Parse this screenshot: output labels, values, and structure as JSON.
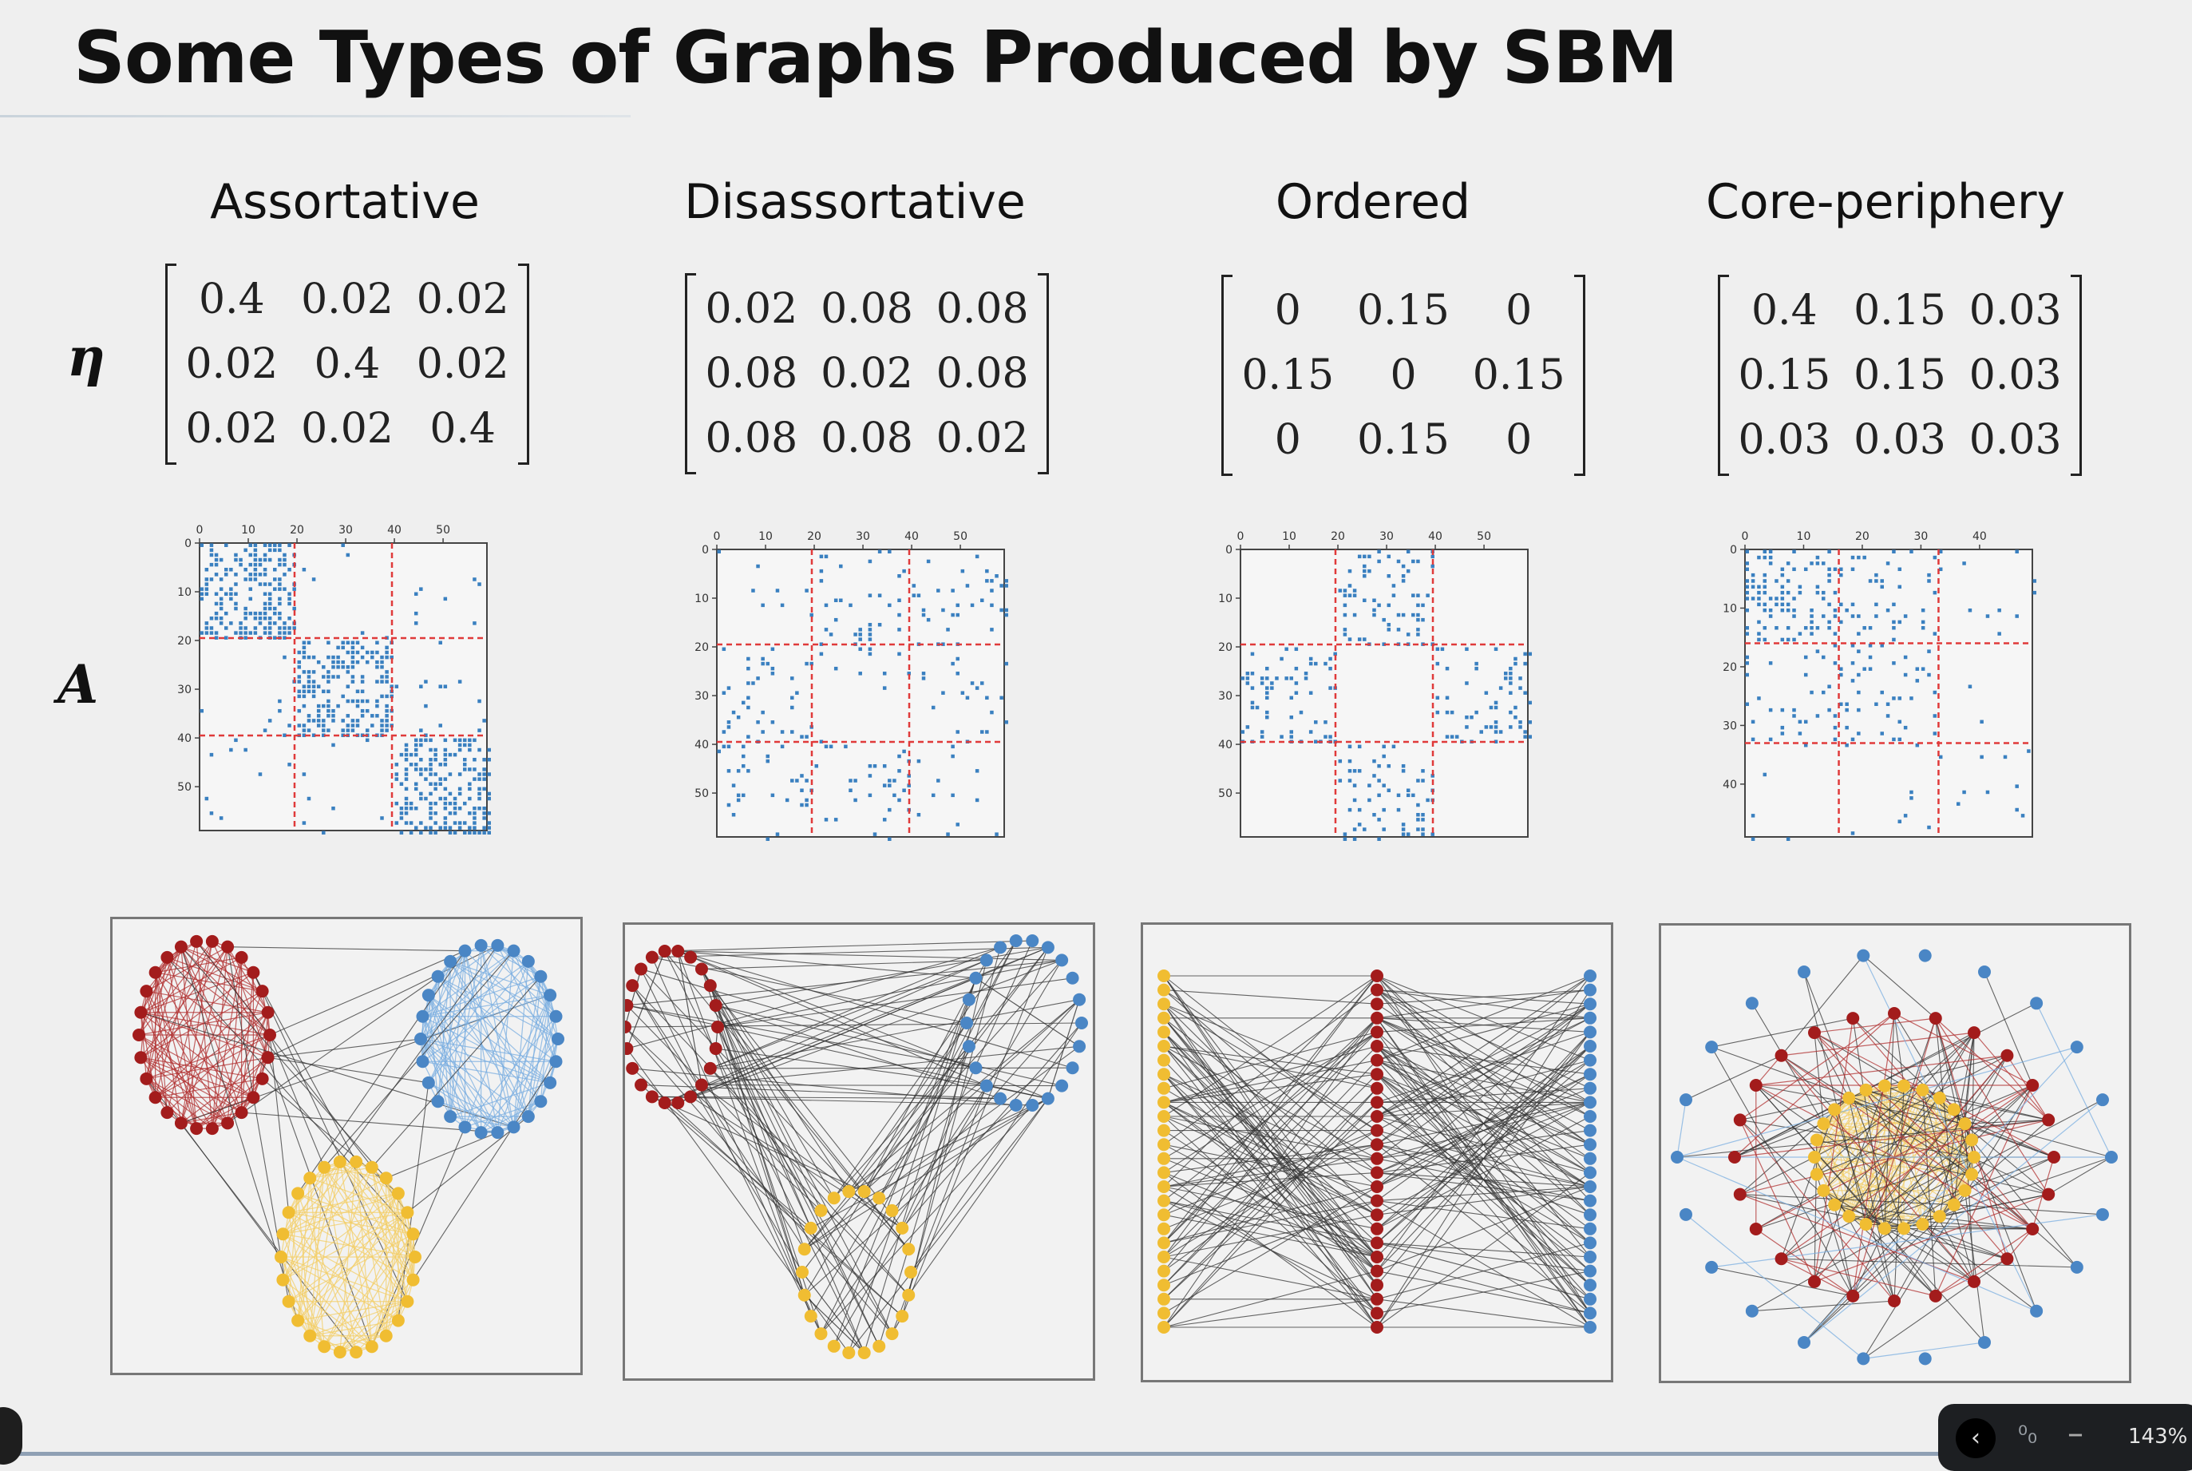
{
  "title": "Some Types of Graphs Produced by SBM",
  "row_labels": {
    "eta": "η",
    "adjacency": "A"
  },
  "panels": [
    {
      "name": "Assortative",
      "eta": [
        [
          "0.4",
          "0.02",
          "0.02"
        ],
        [
          "0.02",
          "0.4",
          "0.02"
        ],
        [
          "0.02",
          "0.02",
          "0.4"
        ]
      ],
      "spy_ticks_x": [
        "0",
        "10",
        "20",
        "30",
        "40",
        "50"
      ],
      "spy_ticks_y": [
        "0",
        "10",
        "20",
        "30",
        "40",
        "50"
      ]
    },
    {
      "name": "Disassortative",
      "eta": [
        [
          "0.02",
          "0.08",
          "0.08"
        ],
        [
          "0.08",
          "0.02",
          "0.08"
        ],
        [
          "0.08",
          "0.08",
          "0.02"
        ]
      ],
      "spy_ticks_x": [
        "0",
        "10",
        "20",
        "30",
        "40",
        "50"
      ],
      "spy_ticks_y": [
        "0",
        "10",
        "20",
        "30",
        "40",
        "50"
      ]
    },
    {
      "name": "Ordered",
      "eta": [
        [
          "0",
          "0.15",
          "0"
        ],
        [
          "0.15",
          "0",
          "0.15"
        ],
        [
          "0",
          "0.15",
          "0"
        ]
      ],
      "spy_ticks_x": [
        "0",
        "10",
        "20",
        "30",
        "40",
        "50"
      ],
      "spy_ticks_y": [
        "0",
        "10",
        "20",
        "30",
        "40",
        "50"
      ]
    },
    {
      "name": "Core-periphery",
      "eta": [
        [
          "0.4",
          "0.15",
          "0.03"
        ],
        [
          "0.15",
          "0.15",
          "0.03"
        ],
        [
          "0.03",
          "0.03",
          "0.03"
        ]
      ],
      "spy_ticks_x": [
        "0",
        "10",
        "20",
        "30",
        "40"
      ],
      "spy_ticks_y": [
        "0",
        "10",
        "20",
        "30",
        "40"
      ]
    }
  ],
  "colors": {
    "background": "#efefef",
    "group_red": "#a31c1c",
    "group_blue": "#4a86c5",
    "group_yellow": "#f0bd32",
    "spy_dot": "#3a80c0",
    "block_divider": "#e03a3a",
    "edge": "#333333"
  },
  "viewer": {
    "zoom": "143%",
    "prev_icon": "chevron-left-icon",
    "fit_icon": "fit-page-icon",
    "zoom_out_icon": "minus-icon"
  }
}
